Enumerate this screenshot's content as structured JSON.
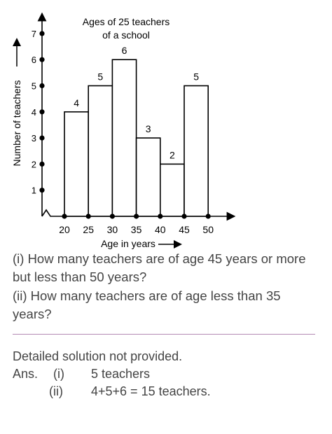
{
  "chart_data": {
    "type": "bar",
    "title_lines": [
      "Ages of 25 teachers",
      "of a school"
    ],
    "xlabel": "Age in years",
    "ylabel": "Number of teachers",
    "x_ticks": [
      20,
      25,
      30,
      35,
      40,
      45,
      50
    ],
    "y_ticks": [
      1,
      2,
      3,
      4,
      5,
      6,
      7
    ],
    "bins": [
      {
        "from": 20,
        "to": 25,
        "value": 4
      },
      {
        "from": 25,
        "to": 30,
        "value": 5
      },
      {
        "from": 30,
        "to": 35,
        "value": 6
      },
      {
        "from": 35,
        "to": 40,
        "value": 3
      },
      {
        "from": 40,
        "to": 45,
        "value": 2
      },
      {
        "from": 45,
        "to": 50,
        "value": 5
      }
    ],
    "value_labels": [
      "4",
      "5",
      "6",
      "3",
      "2",
      "5"
    ],
    "ylim": [
      0,
      7.5
    ],
    "xlim": [
      20,
      50
    ],
    "axis_break": true,
    "grid": false
  },
  "questions": {
    "q1": "(i) How many teachers are of age 45 years or more but less than 50 years?",
    "q2": "(ii) How many teachers are of age less than 35 years?"
  },
  "solution": {
    "note": "Detailed solution not provided.",
    "ans_prefix": "Ans.",
    "part1_label": "(i)",
    "part1_answer": "5 teachers",
    "part2_label": "(ii)",
    "part2_answer": "4+5+6 = 15 teachers."
  }
}
